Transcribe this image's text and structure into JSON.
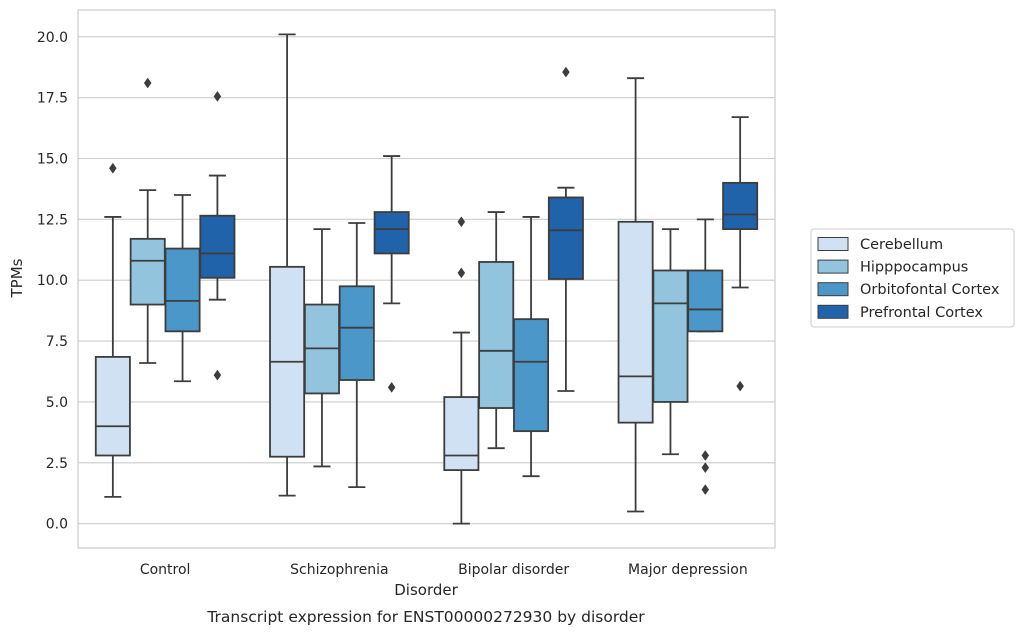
{
  "chart_data": {
    "type": "box",
    "caption": "Transcript expression for ENST00000272930 by disorder",
    "xlabel": "Disorder",
    "ylabel": "TPMs",
    "ylim": [
      -1,
      21.1
    ],
    "yticks": [
      0.0,
      2.5,
      5.0,
      7.5,
      10.0,
      12.5,
      15.0,
      17.5,
      20.0
    ],
    "ytick_labels": [
      "0.0",
      "2.5",
      "5.0",
      "7.5",
      "10.0",
      "12.5",
      "15.0",
      "17.5",
      "20.0"
    ],
    "grid": "horizontal",
    "legend_position": "right",
    "categories": [
      "Control",
      "Schizophrenia",
      "Bipolar disorder",
      "Major depression"
    ],
    "series": [
      {
        "name": "Cerebellum",
        "color": "#cfe1f2",
        "boxes": [
          {
            "whisker_low": 1.1,
            "q1": 2.8,
            "median": 4.0,
            "q3": 6.85,
            "whisker_high": 12.6,
            "outliers": [
              14.6
            ]
          },
          {
            "whisker_low": 1.15,
            "q1": 2.75,
            "median": 6.65,
            "q3": 10.55,
            "whisker_high": 20.1,
            "outliers": []
          },
          {
            "whisker_low": 0.0,
            "q1": 2.2,
            "median": 2.8,
            "q3": 5.2,
            "whisker_high": 7.85,
            "outliers": [
              10.3,
              12.4
            ]
          },
          {
            "whisker_low": 0.5,
            "q1": 4.15,
            "median": 6.05,
            "q3": 12.4,
            "whisker_high": 18.3,
            "outliers": []
          }
        ]
      },
      {
        "name": "Hipppocampus",
        "color": "#93c4de",
        "boxes": [
          {
            "whisker_low": 6.6,
            "q1": 9.0,
            "median": 10.8,
            "q3": 11.7,
            "whisker_high": 13.7,
            "outliers": [
              18.1
            ]
          },
          {
            "whisker_low": 2.35,
            "q1": 5.35,
            "median": 7.2,
            "q3": 9.0,
            "whisker_high": 12.1,
            "outliers": []
          },
          {
            "whisker_low": 3.1,
            "q1": 4.75,
            "median": 7.1,
            "q3": 10.75,
            "whisker_high": 12.8,
            "outliers": []
          },
          {
            "whisker_low": 2.85,
            "q1": 5.0,
            "median": 9.05,
            "q3": 10.4,
            "whisker_high": 12.1,
            "outliers": []
          }
        ]
      },
      {
        "name": "Orbitofontal Cortex",
        "color": "#4b97c9",
        "boxes": [
          {
            "whisker_low": 5.85,
            "q1": 7.9,
            "median": 9.15,
            "q3": 11.3,
            "whisker_high": 13.5,
            "outliers": []
          },
          {
            "whisker_low": 1.5,
            "q1": 5.9,
            "median": 8.05,
            "q3": 9.75,
            "whisker_high": 12.35,
            "outliers": []
          },
          {
            "whisker_low": 1.95,
            "q1": 3.8,
            "median": 6.65,
            "q3": 8.4,
            "whisker_high": 12.6,
            "outliers": []
          },
          {
            "whisker_low": 7.9,
            "q1": 7.9,
            "median": 8.8,
            "q3": 10.4,
            "whisker_high": 12.5,
            "outliers": [
              1.4,
              2.3,
              2.8
            ]
          }
        ]
      },
      {
        "name": "Prefrontal Cortex",
        "color": "#2163aa",
        "boxes": [
          {
            "whisker_low": 9.2,
            "q1": 10.1,
            "median": 11.1,
            "q3": 12.65,
            "whisker_high": 14.3,
            "outliers": [
              6.1,
              17.55
            ]
          },
          {
            "whisker_low": 9.05,
            "q1": 11.1,
            "median": 12.1,
            "q3": 12.8,
            "whisker_high": 15.1,
            "outliers": [
              5.6
            ]
          },
          {
            "whisker_low": 5.45,
            "q1": 10.05,
            "median": 12.05,
            "q3": 13.4,
            "whisker_high": 13.8,
            "outliers": [
              18.55
            ]
          },
          {
            "whisker_low": 9.7,
            "q1": 12.1,
            "median": 12.7,
            "q3": 14.0,
            "whisker_high": 16.7,
            "outliers": [
              5.65
            ]
          }
        ]
      }
    ],
    "colors": {
      "box_edge": "#3d3d3d",
      "grid": "#cccccc",
      "frame": "#cccccc",
      "text": "#262626"
    }
  }
}
